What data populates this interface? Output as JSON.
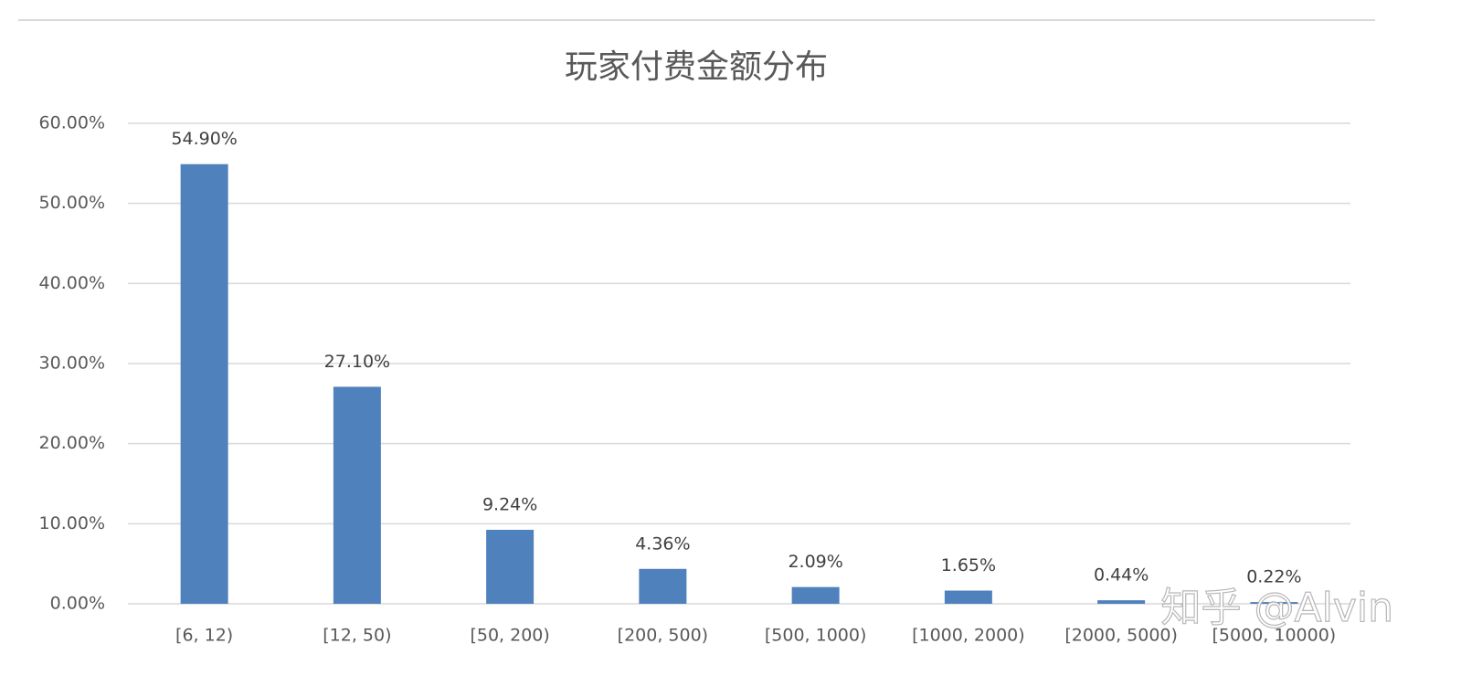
{
  "chart_data": {
    "type": "bar",
    "title": "玩家付费金额分布",
    "categories": [
      "[6, 12)",
      "[12, 50)",
      "[50, 200)",
      "[200, 500)",
      "[500, 1000)",
      "[1000, 2000)",
      "[2000, 5000)",
      "[5000, 10000)"
    ],
    "values": [
      54.9,
      27.1,
      9.24,
      4.36,
      2.09,
      1.65,
      0.44,
      0.22
    ],
    "value_labels": [
      "54.90%",
      "27.10%",
      "9.24%",
      "4.36%",
      "2.09%",
      "1.65%",
      "0.44%",
      "0.22%"
    ],
    "color": "#4f81bd",
    "ylim": [
      0,
      60
    ],
    "yticks": [
      {
        "value": 0,
        "label": "0.00%"
      },
      {
        "value": 10,
        "label": "10.00%"
      },
      {
        "value": 20,
        "label": "20.00%"
      },
      {
        "value": 30,
        "label": "30.00%"
      },
      {
        "value": 40,
        "label": "40.00%"
      },
      {
        "value": 50,
        "label": "50.00%"
      },
      {
        "value": 60,
        "label": "60.00%"
      }
    ],
    "grid": true,
    "watermark": "知乎 @Alvin"
  }
}
